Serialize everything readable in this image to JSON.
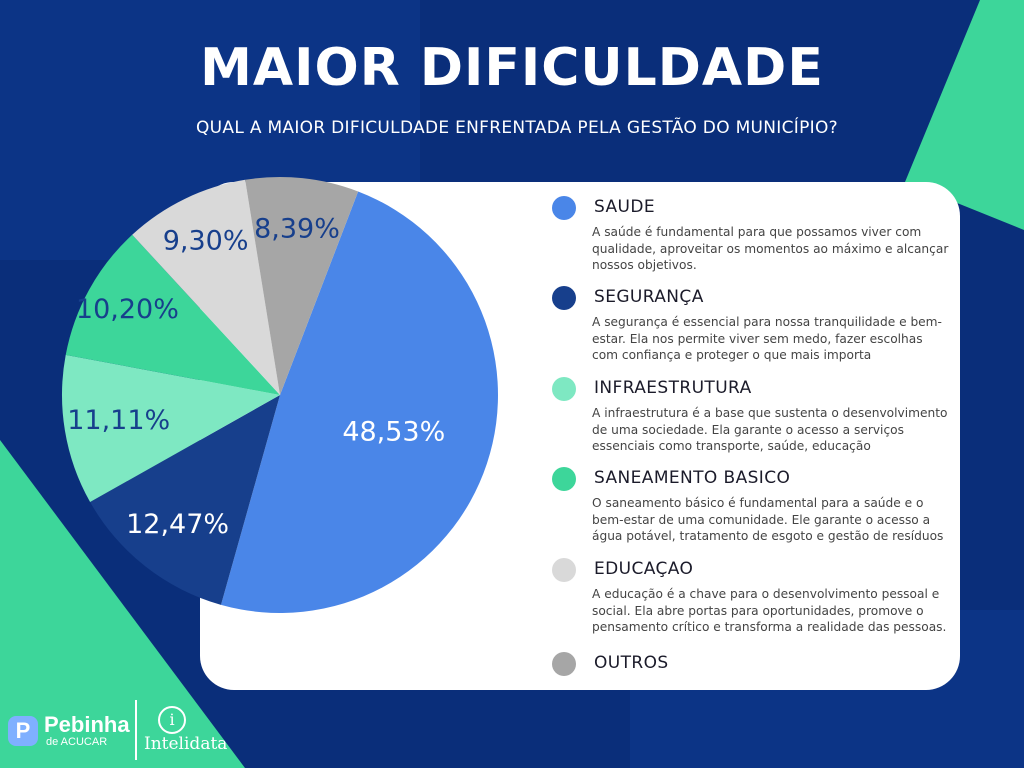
{
  "title": "MAIOR DIFICULDADE",
  "subtitle": "QUAL A MAIOR DIFICULDADE ENFRENTADA PELA GESTÃO DO MUNICÍPIO?",
  "colors": {
    "background": "#0a2e7a",
    "accent_green": "#3dd69a",
    "card": "#ffffff"
  },
  "chart_data": {
    "type": "pie",
    "categories": [
      "SAUDE",
      "SEGURANÇA",
      "INFRAESTRUTURA",
      "SANEAMENTO BASICO",
      "EDUCAÇAO",
      "OUTROS"
    ],
    "values": [
      48.53,
      12.47,
      11.11,
      10.2,
      9.3,
      8.39
    ],
    "labels": [
      "48,53%",
      "12,47%",
      "11,11%",
      "10,20%",
      "9,30%",
      "8,39%"
    ],
    "colors": [
      "#4a86e8",
      "#173f8c",
      "#7ee8c2",
      "#3dd69a",
      "#d9d9d9",
      "#a6a6a6"
    ],
    "label_colors": [
      "#ffffff",
      "#ffffff",
      "#173f8c",
      "#173f8c",
      "#173f8c",
      "#173f8c"
    ],
    "legend_position": "right"
  },
  "legend": [
    {
      "title": "SAUDE",
      "color": "#4a86e8",
      "desc": "A saúde é fundamental para que possamos viver com qualidade, aproveitar os momentos ao máximo e alcançar nossos objetivos."
    },
    {
      "title": "SEGURANÇA",
      "color": "#173f8c",
      "desc": "A segurança é essencial para nossa tranquilidade e bem-estar. Ela nos permite viver sem medo, fazer escolhas com confiança e proteger o que mais importa"
    },
    {
      "title": "INFRAESTRUTURA",
      "color": "#7ee8c2",
      "desc": "A infraestrutura é a base que sustenta o desenvolvimento de uma sociedade. Ela garante o acesso a serviços essenciais como transporte, saúde, educação"
    },
    {
      "title": "SANEAMENTO BASICO",
      "color": "#3dd69a",
      "desc": "O saneamento básico é fundamental para a saúde e o bem-estar de uma comunidade. Ele garante o acesso a água potável, tratamento de esgoto e gestão de resíduos"
    },
    {
      "title": "EDUCAÇAO",
      "color": "#d9d9d9",
      "desc": "A educação é a chave para o desenvolvimento pessoal e social. Ela abre portas para oportunidades, promove o pensamento crítico e transforma a realidade das pessoas."
    },
    {
      "title": "OUTROS",
      "color": "#a6a6a6",
      "desc": ""
    }
  ],
  "logos": {
    "brand1_mark": "P",
    "brand1_name": "Pebinha",
    "brand1_sub": "de ACUCAR",
    "brand2_mark": "i",
    "brand2_name": "Intelidata"
  }
}
